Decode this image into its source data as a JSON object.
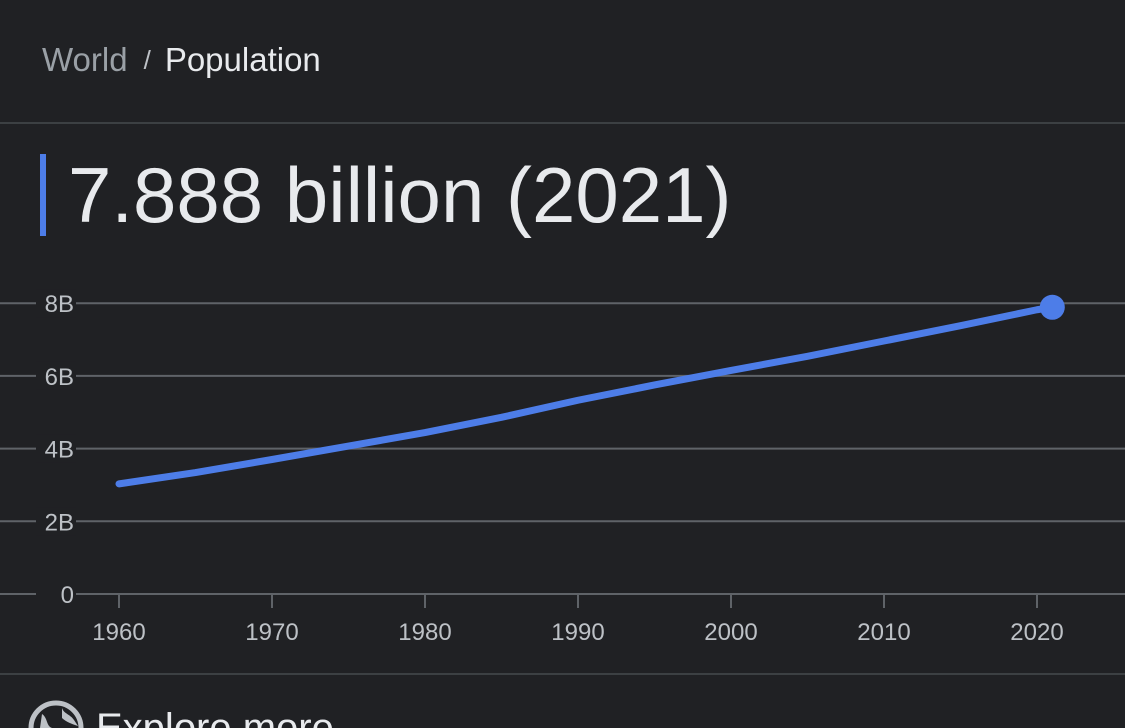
{
  "breadcrumb": {
    "parent": "World",
    "separator": "/",
    "current": "Population"
  },
  "headline": {
    "value": "7.888 billion (2021)"
  },
  "chart_data": {
    "type": "line",
    "title": "",
    "xlabel": "",
    "ylabel": "",
    "xlim": [
      1955,
      2027
    ],
    "ylim": [
      0,
      8
    ],
    "x_ticks": [
      1960,
      1970,
      1980,
      1990,
      2000,
      2010,
      2020
    ],
    "y_ticks": [
      {
        "value": 0,
        "label": "0"
      },
      {
        "value": 2,
        "label": "2B"
      },
      {
        "value": 4,
        "label": "4B"
      },
      {
        "value": 6,
        "label": "6B"
      },
      {
        "value": 8,
        "label": "8B"
      }
    ],
    "grid": true,
    "line_color": "#4d7de8",
    "series": [
      {
        "x": [
          1960,
          1965,
          1970,
          1975,
          1980,
          1985,
          1990,
          1995,
          2000,
          2005,
          2010,
          2015,
          2020,
          2021
        ],
        "values": [
          3.03,
          3.34,
          3.7,
          4.07,
          4.44,
          4.86,
          5.33,
          5.75,
          6.15,
          6.54,
          6.96,
          7.38,
          7.82,
          7.888
        ]
      }
    ],
    "highlight": {
      "x": 2021,
      "y": 7.888
    }
  },
  "footer": {
    "explore_label": "Explore more",
    "icon": "globe-icon"
  }
}
